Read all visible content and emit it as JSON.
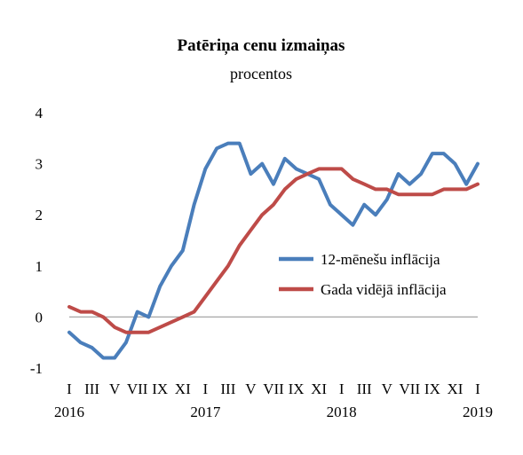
{
  "chart_data": {
    "type": "line",
    "title": "Patēriņa cenu izmaiņas",
    "subtitle": "procentos",
    "xlabel": "",
    "ylabel": "",
    "ylim": [
      -1,
      4
    ],
    "y_ticks": [
      "4",
      "3",
      "2",
      "1",
      "0",
      "-1"
    ],
    "x_tick_labels": [
      "I",
      "III",
      "V",
      "VII",
      "IX",
      "XI",
      "I",
      "III",
      "V",
      "VII",
      "IX",
      "XI",
      "I",
      "III",
      "V",
      "VII",
      "IX",
      "XI",
      "I"
    ],
    "x_year_labels": [
      "2016",
      "2017",
      "2018",
      "2019"
    ],
    "grid": false,
    "legend_position": "right",
    "series": [
      {
        "name": "12-mēnešu inflācija",
        "color": "#4a7ebb",
        "values": [
          -0.3,
          -0.5,
          -0.6,
          -0.8,
          -0.8,
          -0.5,
          0.1,
          0.0,
          0.6,
          1.0,
          1.3,
          2.2,
          2.9,
          3.3,
          3.4,
          3.4,
          2.8,
          3.0,
          2.6,
          3.1,
          2.9,
          2.8,
          2.7,
          2.2,
          2.0,
          1.8,
          2.2,
          2.0,
          2.3,
          2.8,
          2.6,
          2.8,
          3.2,
          3.2,
          3.0,
          2.6,
          3.0
        ]
      },
      {
        "name": "Gada vidējā inflācija",
        "color": "#be4b48",
        "values": [
          0.2,
          0.1,
          0.1,
          0.0,
          -0.2,
          -0.3,
          -0.3,
          -0.3,
          -0.2,
          -0.1,
          0.0,
          0.1,
          0.4,
          0.7,
          1.0,
          1.4,
          1.7,
          2.0,
          2.2,
          2.5,
          2.7,
          2.8,
          2.9,
          2.9,
          2.9,
          2.7,
          2.6,
          2.5,
          2.5,
          2.4,
          2.4,
          2.4,
          2.4,
          2.5,
          2.5,
          2.5,
          2.6
        ]
      }
    ]
  }
}
